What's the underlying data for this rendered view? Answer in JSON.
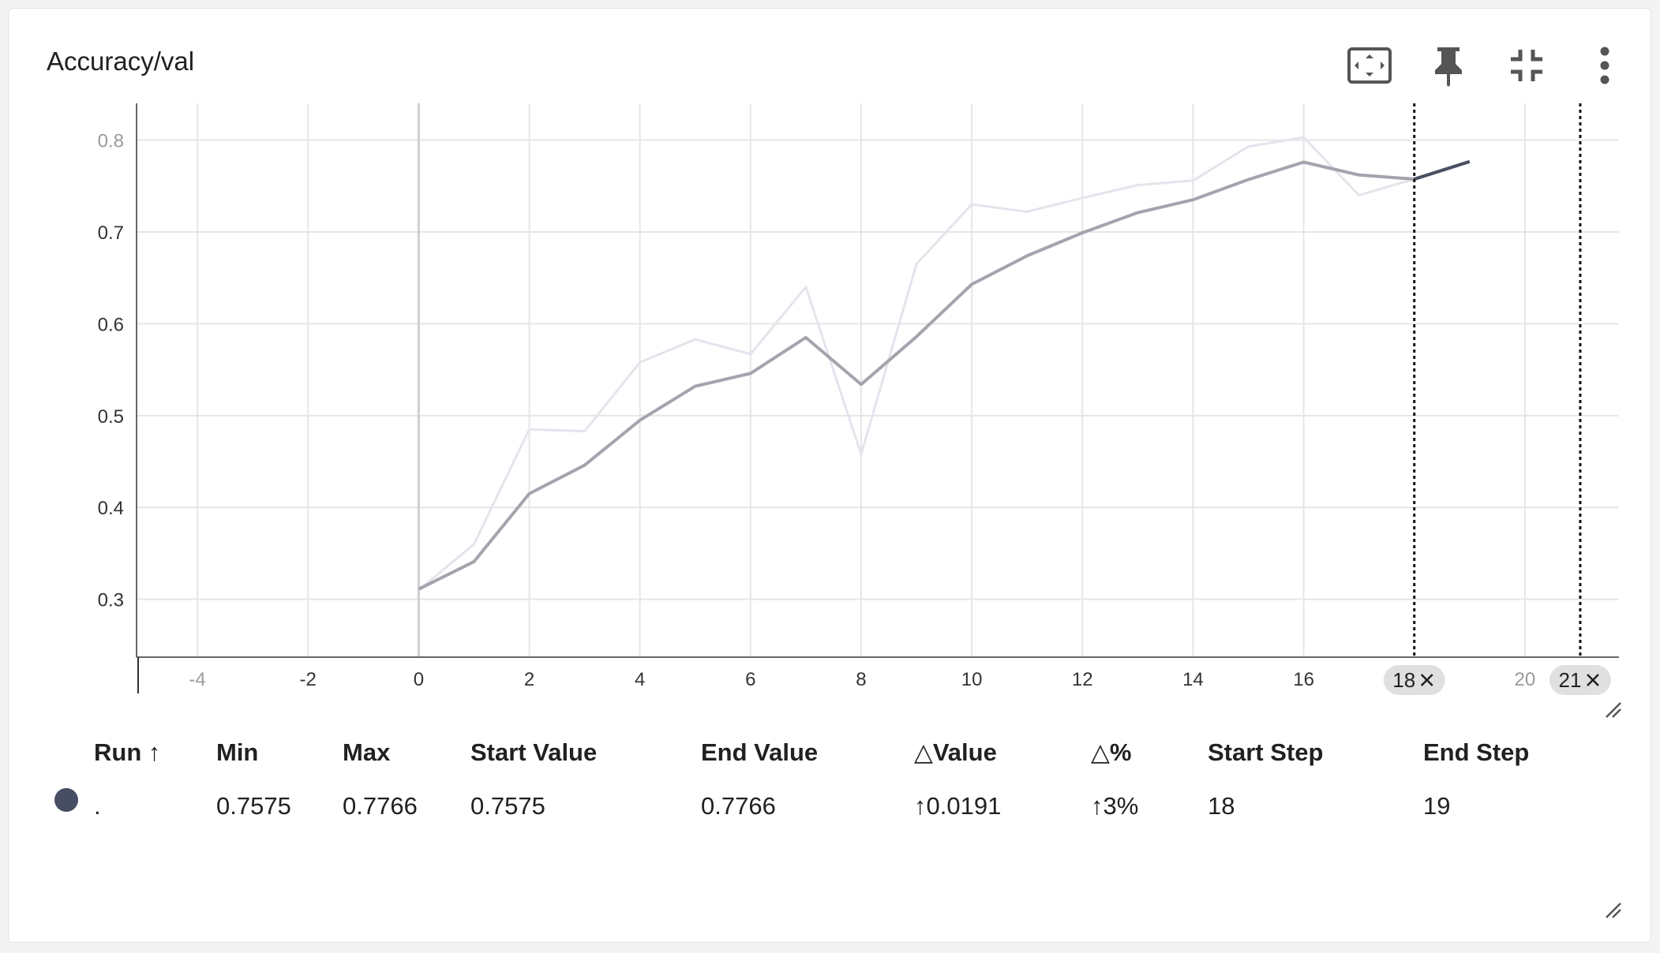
{
  "card": {
    "title": "Accuracy/val"
  },
  "toolbar": {
    "icons": [
      "fit-to-screen-icon",
      "pin-icon",
      "collapse-icon",
      "more-vert-icon"
    ]
  },
  "chart_data": {
    "type": "line",
    "title": "Accuracy/val",
    "xlabel": "",
    "ylabel": "",
    "xlim": [
      -5.1,
      21.7
    ],
    "ylim": [
      0.237,
      0.84
    ],
    "x_ticks": [
      -4,
      -2,
      0,
      2,
      4,
      6,
      8,
      10,
      12,
      14,
      16,
      20
    ],
    "y_ticks": [
      0.3,
      0.4,
      0.5,
      0.6,
      0.7,
      0.8
    ],
    "grid": true,
    "series": [
      {
        "role": "raw",
        "color": "#e4e4ec",
        "x": [
          0,
          1,
          2,
          3,
          4,
          5,
          6,
          7,
          8,
          9,
          10,
          11,
          12,
          13,
          14,
          15,
          16,
          17,
          18,
          19
        ],
        "y": [
          0.31,
          0.36,
          0.485,
          0.483,
          0.558,
          0.583,
          0.567,
          0.64,
          0.458,
          0.665,
          0.73,
          0.722,
          0.737,
          0.751,
          0.756,
          0.793,
          0.803,
          0.74,
          0.7575,
          0.7766
        ]
      },
      {
        "role": "smoothed",
        "color": "#a3a4ad",
        "x": [
          0,
          1,
          2,
          3,
          4,
          5,
          6,
          7,
          8,
          9,
          10,
          11,
          12,
          13,
          14,
          15,
          16,
          17,
          18,
          19
        ],
        "y": [
          0.311,
          0.341,
          0.415,
          0.446,
          0.495,
          0.532,
          0.546,
          0.585,
          0.534,
          0.586,
          0.643,
          0.674,
          0.699,
          0.721,
          0.735,
          0.757,
          0.776,
          0.762,
          0.7575,
          0.7766
        ]
      }
    ],
    "selected_range": {
      "start": 18,
      "end": 21,
      "color": "#4a4f63",
      "start_label": "18",
      "end_label": "21"
    }
  },
  "summary": {
    "columns": [
      "Run",
      "Min",
      "Max",
      "Start Value",
      "End Value",
      "Value",
      "%",
      "Start Step",
      "End Step"
    ],
    "sort_arrow": "↑",
    "delta_symbol": "△",
    "rows": [
      {
        "run": ".",
        "dot_color": "#474e64",
        "min": "0.7575",
        "max": "0.7766",
        "start_value": "0.7575",
        "end_value": "0.7766",
        "delta_value": "0.0191",
        "delta_pct": "3%",
        "delta_arrow": "↑",
        "start_step": "18",
        "end_step": "19"
      }
    ]
  }
}
